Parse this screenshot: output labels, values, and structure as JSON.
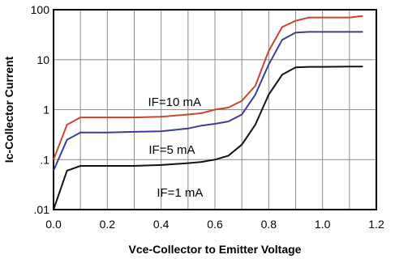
{
  "chart_data": {
    "type": "line",
    "title": "",
    "xlabel": "Vce-Collector to Emitter Voltage",
    "ylabel": "Ic-Collector Current",
    "xlim": [
      0.0,
      1.2
    ],
    "ylim": [
      0.01,
      100
    ],
    "y_scale": "log",
    "grid": true,
    "x_ticks": [
      0.0,
      0.2,
      0.4,
      0.6,
      0.8,
      1.0,
      1.2
    ],
    "x_tick_labels": [
      "0.0",
      "0.2",
      "0.4",
      "0.6",
      "0.8",
      "1.0",
      "1.2"
    ],
    "y_ticks": [
      0.01,
      0.1,
      1,
      10,
      100
    ],
    "y_tick_labels": [
      ".01",
      ".1",
      "1",
      "10",
      "100"
    ],
    "series": [
      {
        "name": "IF=10 mA",
        "color": "#c8452f",
        "x": [
          0.0,
          0.05,
          0.1,
          0.2,
          0.3,
          0.4,
          0.5,
          0.55,
          0.6,
          0.65,
          0.7,
          0.75,
          0.8,
          0.85,
          0.9,
          0.95,
          1.0,
          1.1,
          1.15
        ],
        "y": [
          0.1,
          0.5,
          0.7,
          0.7,
          0.7,
          0.72,
          0.8,
          0.85,
          1.0,
          1.1,
          1.5,
          3.0,
          15,
          45,
          60,
          70,
          70,
          70,
          75
        ]
      },
      {
        "name": "IF=5 mA",
        "color": "#3b3d94",
        "x": [
          0.0,
          0.05,
          0.1,
          0.2,
          0.3,
          0.4,
          0.5,
          0.55,
          0.6,
          0.65,
          0.7,
          0.75,
          0.8,
          0.85,
          0.9,
          0.95,
          1.0,
          1.1,
          1.15
        ],
        "y": [
          0.06,
          0.25,
          0.35,
          0.35,
          0.36,
          0.37,
          0.42,
          0.48,
          0.52,
          0.58,
          0.8,
          2.0,
          8.0,
          25,
          35,
          36,
          36,
          36,
          36
        ]
      },
      {
        "name": "IF=1 mA",
        "color": "#111111",
        "x": [
          0.0,
          0.05,
          0.1,
          0.2,
          0.3,
          0.4,
          0.5,
          0.55,
          0.6,
          0.65,
          0.7,
          0.75,
          0.8,
          0.85,
          0.9,
          0.95,
          1.0,
          1.1,
          1.15
        ],
        "y": [
          0.01,
          0.06,
          0.075,
          0.075,
          0.075,
          0.078,
          0.085,
          0.09,
          0.1,
          0.12,
          0.2,
          0.5,
          2.0,
          5.0,
          7.0,
          7.2,
          7.2,
          7.3,
          7.3
        ]
      }
    ]
  }
}
